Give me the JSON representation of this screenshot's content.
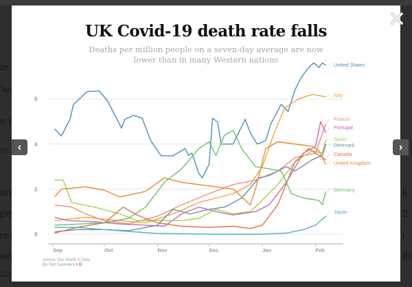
{
  "background_page": {
    "left_fragments": [
      "te y",
      "'w",
      "e n",
      "re",
      "une",
      "pec",
      "rea",
      "ew",
      "so"
    ],
    "right_fragments": [
      "k",
      "2",
      "i",
      "th"
    ]
  },
  "lightbox": {
    "close_icon": "close-x-icon",
    "prev_icon": "chevron-left-icon",
    "next_icon": "chevron-right-icon",
    "prev_label": "‹",
    "next_label": "›"
  },
  "chart_data": {
    "type": "line",
    "title": "UK Covid-19 death rate falls",
    "subtitle": "Deaths per million people on a seven-day average are now lower than in many Western nations",
    "xlabel": "",
    "ylabel": "",
    "x_ticks": [
      "Sep",
      "Oct",
      "Nov",
      "Dec",
      "Jan",
      "Feb"
    ],
    "x_tick_dates": [
      "2020-09-01",
      "2020-10-01",
      "2020-11-01",
      "2020-12-01",
      "2021-01-01",
      "2021-02-01"
    ],
    "y_ticks": [
      0,
      2,
      4,
      6
    ],
    "ylim": [
      0,
      8
    ],
    "xlim": [
      "2020-09-01",
      "2021-02-10"
    ],
    "grid": "horizontal",
    "legend": "direct labels at right end of lines",
    "source": "source: Our World in Data",
    "byline": "By Tom Saunders",
    "series": [
      {
        "name": "United States",
        "color": "#4a8fb6",
        "points": [
          [
            "2020-09-02",
            4.67
          ],
          [
            "2020-09-06",
            4.36
          ],
          [
            "2020-09-11",
            5.1
          ],
          [
            "2020-09-13",
            5.76
          ],
          [
            "2020-09-21",
            6.33
          ],
          [
            "2020-09-28",
            6.36
          ],
          [
            "2020-10-03",
            5.9
          ],
          [
            "2020-10-11",
            4.7
          ],
          [
            "2020-10-13",
            5.1
          ],
          [
            "2020-10-18",
            5.27
          ],
          [
            "2020-10-23",
            5.15
          ],
          [
            "2020-10-28",
            4.15
          ],
          [
            "2020-11-03",
            3.48
          ],
          [
            "2020-11-10",
            3.48
          ],
          [
            "2020-11-17",
            3.8
          ],
          [
            "2020-11-19",
            3.5
          ],
          [
            "2020-11-21",
            3.6
          ],
          [
            "2020-11-25",
            2.7
          ],
          [
            "2020-11-27",
            2.5
          ],
          [
            "2020-12-01",
            3.1
          ],
          [
            "2020-12-03",
            5.15
          ],
          [
            "2020-12-06",
            4.97
          ],
          [
            "2020-12-08",
            4.0
          ],
          [
            "2020-12-15",
            4.0
          ],
          [
            "2020-12-22",
            5.1
          ],
          [
            "2020-12-25",
            4.5
          ],
          [
            "2020-12-29",
            4.0
          ],
          [
            "2021-01-03",
            4.15
          ],
          [
            "2021-01-06",
            4.9
          ],
          [
            "2021-01-12",
            5.76
          ],
          [
            "2021-01-16",
            5.45
          ],
          [
            "2021-01-20",
            6.4
          ],
          [
            "2021-01-24",
            7.0
          ],
          [
            "2021-01-28",
            7.4
          ],
          [
            "2021-01-31",
            7.6
          ],
          [
            "2021-02-03",
            7.4
          ],
          [
            "2021-02-05",
            7.6
          ],
          [
            "2021-02-07",
            7.5
          ]
        ]
      },
      {
        "name": "Italy",
        "color": "#f0a53a",
        "points": [
          [
            "2020-09-02",
            0.6
          ],
          [
            "2020-09-20",
            0.75
          ],
          [
            "2020-10-10",
            0.6
          ],
          [
            "2020-10-25",
            0.5
          ],
          [
            "2020-11-10",
            0.9
          ],
          [
            "2020-11-25",
            1.4
          ],
          [
            "2020-12-05",
            1.6
          ],
          [
            "2020-12-15",
            1.8
          ],
          [
            "2020-12-25",
            2.2
          ],
          [
            "2021-01-01",
            3.0
          ],
          [
            "2021-01-08",
            4.5
          ],
          [
            "2021-01-14",
            5.6
          ],
          [
            "2021-01-22",
            6.0
          ],
          [
            "2021-01-30",
            6.2
          ],
          [
            "2021-02-07",
            6.1
          ]
        ]
      },
      {
        "name": "France",
        "color": "#f08b80",
        "points": [
          [
            "2020-09-02",
            1.3
          ],
          [
            "2020-09-12",
            1.2
          ],
          [
            "2020-09-20",
            0.9
          ],
          [
            "2020-10-01",
            0.6
          ],
          [
            "2020-10-15",
            0.45
          ],
          [
            "2020-11-01",
            0.8
          ],
          [
            "2020-11-15",
            1.3
          ],
          [
            "2020-12-01",
            1.8
          ],
          [
            "2020-12-15",
            2.2
          ],
          [
            "2020-12-28",
            2.4
          ],
          [
            "2021-01-10",
            2.8
          ],
          [
            "2021-01-20",
            3.4
          ],
          [
            "2021-02-01",
            3.6
          ],
          [
            "2021-02-07",
            4.9
          ]
        ]
      },
      {
        "name": "Portugal",
        "color": "#c866b6",
        "points": [
          [
            "2020-09-02",
            0.75
          ],
          [
            "2020-09-10",
            0.6
          ],
          [
            "2020-09-25",
            0.55
          ],
          [
            "2020-10-10",
            0.45
          ],
          [
            "2020-10-25",
            0.4
          ],
          [
            "2020-11-05",
            0.35
          ],
          [
            "2020-11-15",
            0.9
          ],
          [
            "2020-11-25",
            1.2
          ],
          [
            "2020-12-05",
            1.0
          ],
          [
            "2020-12-15",
            0.85
          ],
          [
            "2020-12-28",
            1.0
          ],
          [
            "2021-01-05",
            1.3
          ],
          [
            "2021-01-15",
            2.3
          ],
          [
            "2021-01-25",
            3.6
          ],
          [
            "2021-02-01",
            3.9
          ],
          [
            "2021-02-04",
            5.0
          ],
          [
            "2021-02-07",
            4.5
          ]
        ]
      },
      {
        "name": "Spain",
        "color": "#a8cf4c",
        "points": [
          [
            "2020-09-02",
            2.4
          ],
          [
            "2020-09-07",
            2.4
          ],
          [
            "2020-09-12",
            1.4
          ],
          [
            "2020-09-25",
            1.2
          ],
          [
            "2020-10-10",
            0.9
          ],
          [
            "2020-10-20",
            0.6
          ],
          [
            "2020-11-01",
            0.6
          ],
          [
            "2020-11-15",
            0.6
          ],
          [
            "2020-11-25",
            0.7
          ],
          [
            "2020-12-05",
            1.1
          ],
          [
            "2020-12-15",
            0.9
          ],
          [
            "2020-12-25",
            1.0
          ],
          [
            "2021-01-01",
            1.5
          ],
          [
            "2021-01-10",
            2.2
          ],
          [
            "2021-01-20",
            3.2
          ],
          [
            "2021-01-30",
            3.7
          ],
          [
            "2021-02-05",
            3.6
          ],
          [
            "2021-02-07",
            4.2
          ]
        ]
      },
      {
        "name": "Denmark",
        "color": "#6b8ea8",
        "points": [
          [
            "2020-09-02",
            0.1
          ],
          [
            "2020-09-15",
            0.2
          ],
          [
            "2020-10-01",
            0.2
          ],
          [
            "2020-10-15",
            0.15
          ],
          [
            "2020-11-01",
            0.4
          ],
          [
            "2020-11-10",
            1.1
          ],
          [
            "2020-11-20",
            0.9
          ],
          [
            "2020-12-01",
            1.1
          ],
          [
            "2020-12-10",
            1.2
          ],
          [
            "2020-12-20",
            1.6
          ],
          [
            "2020-12-30",
            2.5
          ],
          [
            "2021-01-05",
            2.6
          ],
          [
            "2021-01-15",
            3.0
          ],
          [
            "2021-01-20",
            2.8
          ],
          [
            "2021-01-30",
            3.3
          ],
          [
            "2021-02-05",
            3.5
          ],
          [
            "2021-02-07",
            4.0
          ]
        ]
      },
      {
        "name": "Canada",
        "color": "#e0704a",
        "points": [
          [
            "2020-09-02",
            0.05
          ],
          [
            "2020-09-15",
            0.3
          ],
          [
            "2020-10-01",
            0.5
          ],
          [
            "2020-10-12",
            1.2
          ],
          [
            "2020-10-20",
            0.85
          ],
          [
            "2020-11-01",
            0.5
          ],
          [
            "2020-11-15",
            0.35
          ],
          [
            "2020-12-01",
            0.3
          ],
          [
            "2020-12-15",
            0.35
          ],
          [
            "2020-12-25",
            0.25
          ],
          [
            "2021-01-01",
            0.4
          ],
          [
            "2021-01-10",
            1.3
          ],
          [
            "2021-01-20",
            3.2
          ],
          [
            "2021-01-28",
            3.8
          ],
          [
            "2021-02-03",
            3.5
          ],
          [
            "2021-02-07",
            3.3
          ]
        ]
      },
      {
        "name": "United Kingdom",
        "color": "#e8892e",
        "points": [
          [
            "2020-09-02",
            1.65
          ],
          [
            "2020-09-06",
            2.0
          ],
          [
            "2020-09-20",
            2.1
          ],
          [
            "2020-10-01",
            1.95
          ],
          [
            "2020-10-10",
            1.65
          ],
          [
            "2020-10-25",
            1.9
          ],
          [
            "2020-11-05",
            2.5
          ],
          [
            "2020-11-15",
            2.3
          ],
          [
            "2020-11-25",
            2.2
          ],
          [
            "2020-12-05",
            2.1
          ],
          [
            "2020-12-15",
            2.0
          ],
          [
            "2020-12-25",
            1.3
          ],
          [
            "2020-12-28",
            2.0
          ],
          [
            "2021-01-03",
            3.8
          ],
          [
            "2021-01-10",
            4.1
          ],
          [
            "2021-01-20",
            4.0
          ],
          [
            "2021-01-30",
            3.9
          ],
          [
            "2021-02-03",
            3.7
          ],
          [
            "2021-02-07",
            3.1
          ]
        ]
      },
      {
        "name": "Germany",
        "color": "#6cbf6a",
        "points": [
          [
            "2020-09-02",
            0.4
          ],
          [
            "2020-10-01",
            0.5
          ],
          [
            "2020-10-15",
            0.7
          ],
          [
            "2020-10-25",
            1.2
          ],
          [
            "2020-11-05",
            2.3
          ],
          [
            "2020-11-15",
            2.9
          ],
          [
            "2020-11-25",
            3.8
          ],
          [
            "2020-12-01",
            4.1
          ],
          [
            "2020-12-05",
            3.5
          ],
          [
            "2020-12-10",
            4.4
          ],
          [
            "2020-12-15",
            4.6
          ],
          [
            "2020-12-20",
            3.8
          ],
          [
            "2020-12-28",
            3.0
          ],
          [
            "2021-01-05",
            2.9
          ],
          [
            "2021-01-12",
            2.8
          ],
          [
            "2021-01-18",
            1.8
          ],
          [
            "2021-01-25",
            1.6
          ],
          [
            "2021-02-03",
            1.5
          ],
          [
            "2021-02-05",
            1.3
          ],
          [
            "2021-02-07",
            1.9
          ]
        ]
      },
      {
        "name": "Japan",
        "color": "#48b3bf",
        "points": [
          [
            "2020-09-02",
            0.3
          ],
          [
            "2020-09-15",
            0.3
          ],
          [
            "2020-10-01",
            0.2
          ],
          [
            "2020-10-15",
            0.12
          ],
          [
            "2020-11-01",
            0.03
          ],
          [
            "2020-12-01",
            0.0
          ],
          [
            "2021-01-01",
            0.0
          ],
          [
            "2021-01-15",
            0.05
          ],
          [
            "2021-01-25",
            0.2
          ],
          [
            "2021-02-01",
            0.4
          ],
          [
            "2021-02-07",
            0.8
          ]
        ]
      }
    ]
  }
}
